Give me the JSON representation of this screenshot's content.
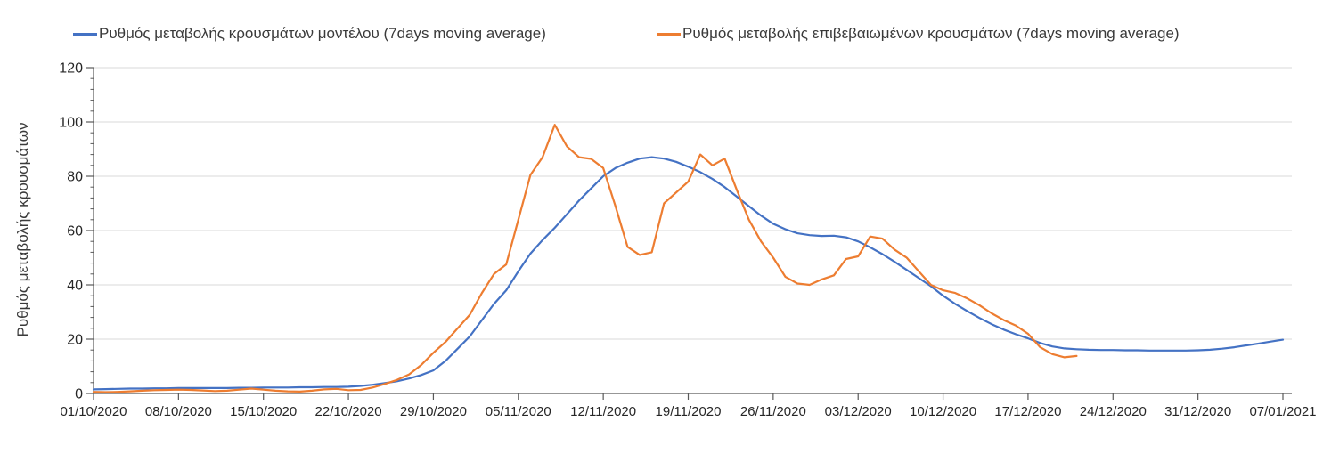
{
  "chart_data": {
    "type": "line",
    "title": "",
    "ylabel": "Ρυθμός μεταβολής κρουσμάτων",
    "xlabel": "",
    "ylim": [
      0,
      120
    ],
    "yticks": [
      0,
      20,
      40,
      60,
      80,
      100,
      120
    ],
    "yminor_step": 4,
    "grid": "horizontal",
    "legend_position": "top",
    "xtick_every": 7,
    "xtick_labels": [
      "01/10/2020",
      "08/10/2020",
      "15/10/2020",
      "22/10/2020",
      "29/10/2020",
      "05/11/2020",
      "12/11/2020",
      "19/11/2020",
      "26/11/2020",
      "03/12/2020",
      "10/12/2020",
      "17/12/2020",
      "24/12/2020",
      "31/12/2020",
      "07/01/2021"
    ],
    "x": [
      "01/10/2020",
      "02/10/2020",
      "03/10/2020",
      "04/10/2020",
      "05/10/2020",
      "06/10/2020",
      "07/10/2020",
      "08/10/2020",
      "09/10/2020",
      "10/10/2020",
      "11/10/2020",
      "12/10/2020",
      "13/10/2020",
      "14/10/2020",
      "15/10/2020",
      "16/10/2020",
      "17/10/2020",
      "18/10/2020",
      "19/10/2020",
      "20/10/2020",
      "21/10/2020",
      "22/10/2020",
      "23/10/2020",
      "24/10/2020",
      "25/10/2020",
      "26/10/2020",
      "27/10/2020",
      "28/10/2020",
      "29/10/2020",
      "30/10/2020",
      "31/10/2020",
      "01/11/2020",
      "02/11/2020",
      "03/11/2020",
      "04/11/2020",
      "05/11/2020",
      "06/11/2020",
      "07/11/2020",
      "08/11/2020",
      "09/11/2020",
      "10/11/2020",
      "11/11/2020",
      "12/11/2020",
      "13/11/2020",
      "14/11/2020",
      "15/11/2020",
      "16/11/2020",
      "17/11/2020",
      "18/11/2020",
      "19/11/2020",
      "20/11/2020",
      "21/11/2020",
      "22/11/2020",
      "23/11/2020",
      "24/11/2020",
      "25/11/2020",
      "26/11/2020",
      "27/11/2020",
      "28/11/2020",
      "29/11/2020",
      "30/11/2020",
      "01/12/2020",
      "02/12/2020",
      "03/12/2020",
      "04/12/2020",
      "05/12/2020",
      "06/12/2020",
      "07/12/2020",
      "08/12/2020",
      "09/12/2020",
      "10/12/2020",
      "11/12/2020",
      "12/12/2020",
      "13/12/2020",
      "14/12/2020",
      "15/12/2020",
      "16/12/2020",
      "17/12/2020",
      "18/12/2020",
      "19/12/2020",
      "20/12/2020",
      "21/12/2020",
      "22/12/2020",
      "23/12/2020",
      "24/12/2020",
      "25/12/2020",
      "26/12/2020",
      "27/12/2020",
      "28/12/2020",
      "29/12/2020",
      "30/12/2020",
      "31/12/2020",
      "01/01/2021",
      "02/01/2021",
      "03/01/2021",
      "04/01/2021",
      "05/01/2021",
      "06/01/2021",
      "07/01/2021"
    ],
    "series": [
      {
        "name": "Ρυθμός μεταβολής κρουσμάτων μοντέλου (7days moving average)",
        "color": "#4472C4",
        "values": [
          1.5,
          1.6,
          1.7,
          1.8,
          1.8,
          1.9,
          1.9,
          2.0,
          2.0,
          2.0,
          2.0,
          2.0,
          2.1,
          2.1,
          2.2,
          2.2,
          2.2,
          2.3,
          2.3,
          2.4,
          2.4,
          2.5,
          2.8,
          3.2,
          3.8,
          4.5,
          5.5,
          6.8,
          8.5,
          12,
          16.5,
          21,
          27,
          33,
          38,
          45,
          51.5,
          56.5,
          61,
          66,
          71,
          75.5,
          80,
          83,
          85,
          86.5,
          87,
          86.5,
          85.3,
          83.5,
          81.5,
          79,
          76,
          72.5,
          69,
          65.5,
          62.5,
          60.5,
          59,
          58.3,
          58,
          58.1,
          57.5,
          56,
          53.8,
          51.3,
          48.5,
          45.5,
          42.5,
          39.5,
          36,
          33,
          30.3,
          27.8,
          25.5,
          23.5,
          21.8,
          20.3,
          18.6,
          17.3,
          16.6,
          16.3,
          16.1,
          16.0,
          16.0,
          15.9,
          15.9,
          15.8,
          15.8,
          15.8,
          15.8,
          15.9,
          16.1,
          16.5,
          17,
          17.7,
          18.4,
          19.1,
          19.8
        ]
      },
      {
        "name": "Ρυθμός μεταβολής επιβεβαιωμένων κρουσμάτων (7days moving average)",
        "color": "#ED7D31",
        "values": [
          0.6,
          0.5,
          0.6,
          0.8,
          1.0,
          1.2,
          1.3,
          1.4,
          1.3,
          1.1,
          0.9,
          1.0,
          1.4,
          1.8,
          1.4,
          1.0,
          0.8,
          0.7,
          1.0,
          1.5,
          1.7,
          1.2,
          1.3,
          2.2,
          3.5,
          5,
          7,
          10.5,
          15,
          19,
          24,
          29,
          37,
          44,
          47.5,
          64,
          80.5,
          87,
          99,
          91,
          87,
          86.4,
          83,
          69,
          54,
          51,
          52,
          70,
          74,
          78,
          88,
          84,
          86.5,
          75,
          64,
          56,
          50,
          43,
          40.5,
          40,
          42,
          43.5,
          49.5,
          50.5,
          57.8,
          57,
          53,
          50,
          45,
          40,
          38,
          37,
          35,
          32.5,
          29.5,
          27,
          25,
          22,
          17,
          14.5,
          13.3,
          13.8
        ]
      }
    ]
  },
  "colors": {
    "gridline": "#D9D9D9",
    "axis": "#595959",
    "text": "#262626",
    "legend_text": "#3a3a3a"
  }
}
